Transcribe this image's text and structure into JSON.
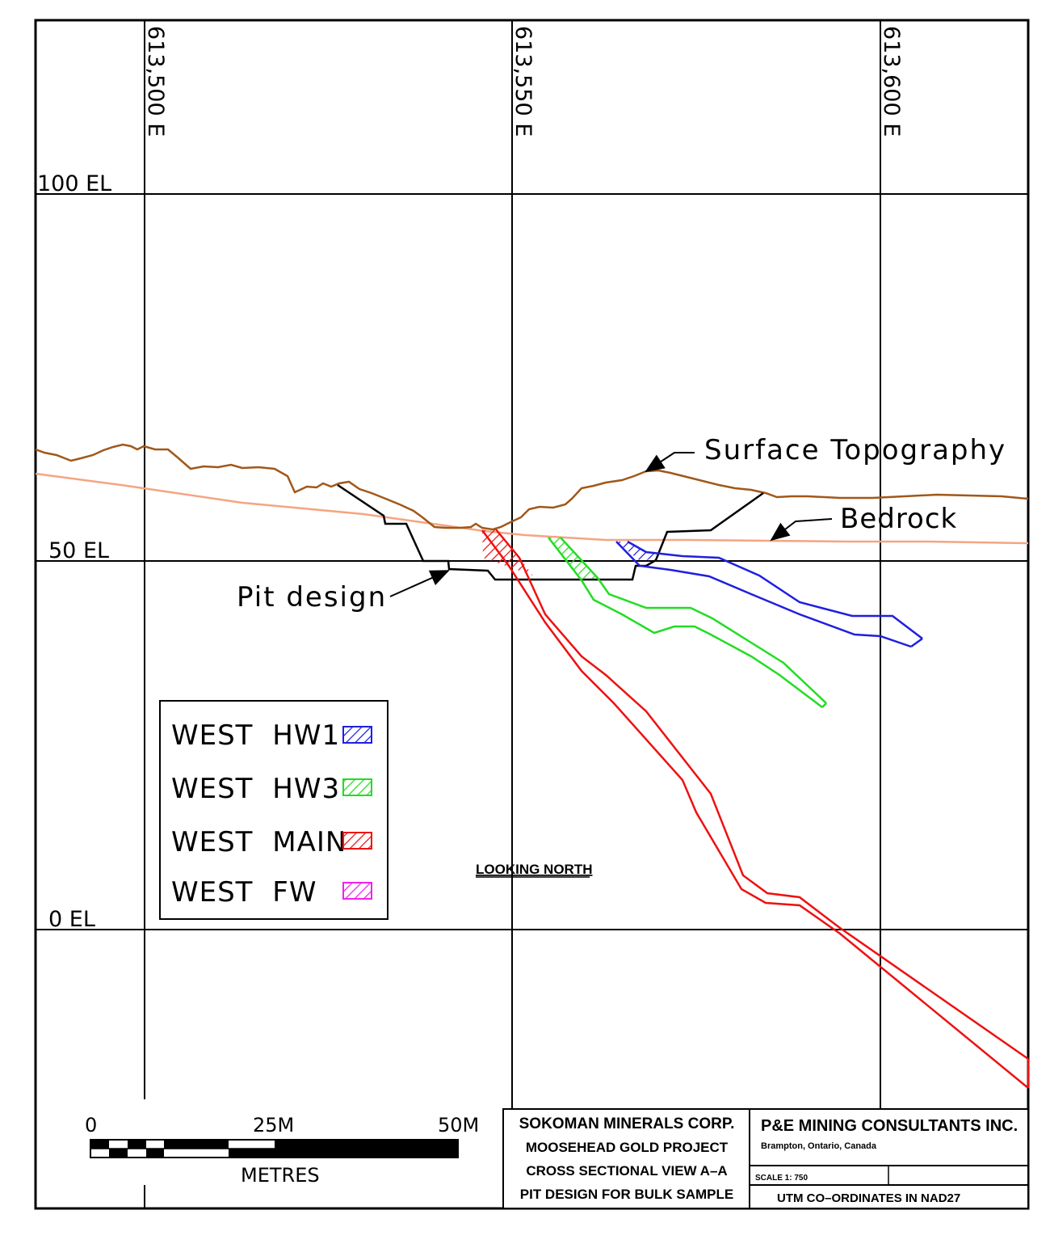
{
  "grid": {
    "easting_labels": [
      "613,500 E",
      "613,550 E",
      "613,600 E"
    ],
    "elevation_labels": [
      "100 EL",
      "50 EL",
      "0 EL"
    ]
  },
  "annotations": {
    "surface_topography": "Surface Topography",
    "bedrock": "Bedrock",
    "pit_design": "Pit design",
    "looking_north": "LOOKING NORTH"
  },
  "legend": [
    {
      "label": "WEST HW1",
      "color": "#1f1fe0"
    },
    {
      "label": "WEST HW3",
      "color": "#22dd22"
    },
    {
      "label": "WEST MAIN",
      "color": "#ee1111"
    },
    {
      "label": "WEST FW",
      "color": "#ee22ee"
    }
  ],
  "scale_bar": {
    "tick_0": "0",
    "tick_25": "25M",
    "tick_50": "50M",
    "units": "METRES"
  },
  "title_block": {
    "company": "SOKOMAN MINERALS CORP.",
    "project": "MOOSEHEAD GOLD PROJECT",
    "view": "CROSS SECTIONAL VIEW A–A",
    "subject": "PIT DESIGN FOR BULK SAMPLE",
    "consultant": "P&E MINING CONSULTANTS INC.",
    "location": "Brampton, Ontario, Canada",
    "scale": "SCALE 1: 750",
    "coords": "UTM CO–ORDINATES IN NAD27"
  },
  "colors": {
    "topography": "#a0581a",
    "bedrock": "#f4a582",
    "hw1": "#1f1fe0",
    "hw3": "#22dd22",
    "main": "#ee1111",
    "fw": "#ee22ee"
  }
}
